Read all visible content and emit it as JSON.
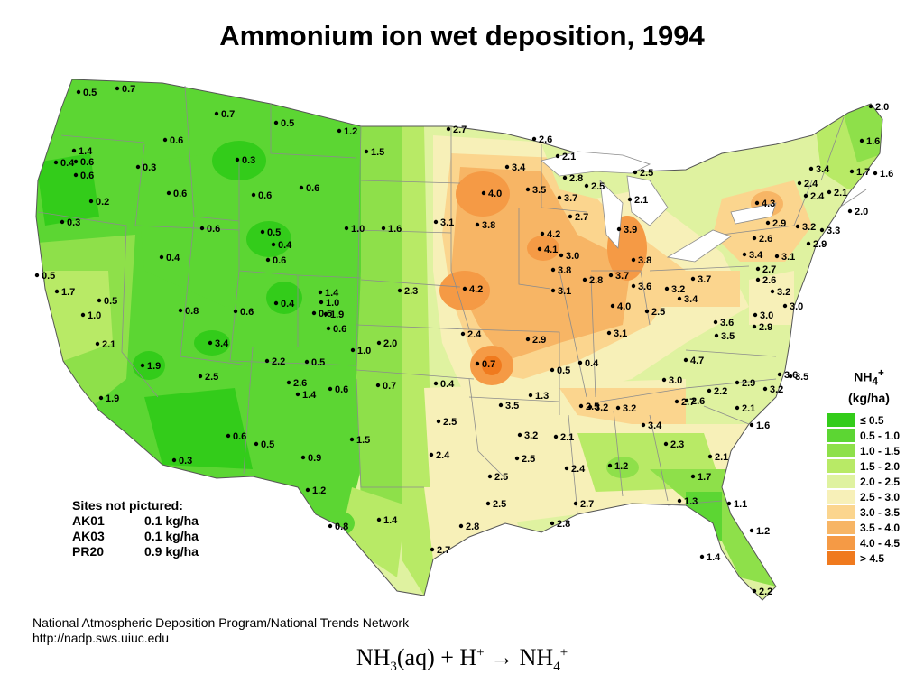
{
  "title": "Ammonium ion wet deposition, 1994",
  "legend": {
    "title_main": "NH",
    "title_sub": "4",
    "title_sup": "+",
    "unit": "(kg/ha)",
    "items": [
      {
        "label": "≤ 0.5",
        "color": "#33cc1a"
      },
      {
        "label": "0.5 - 1.0",
        "color": "#5cd633"
      },
      {
        "label": "1.0 - 1.5",
        "color": "#8ee04a"
      },
      {
        "label": "1.5 - 2.0",
        "color": "#b8ea66"
      },
      {
        "label": "2.0 - 2.5",
        "color": "#dff2a0"
      },
      {
        "label": "2.5 - 3.0",
        "color": "#f7f0b8"
      },
      {
        "label": "3.0 - 3.5",
        "color": "#fbd58e"
      },
      {
        "label": "3.5 - 4.0",
        "color": "#f7b565"
      },
      {
        "label": "4.0 - 4.5",
        "color": "#f59a45"
      },
      {
        "label": "> 4.5",
        "color": "#f07a1e"
      }
    ]
  },
  "sites_not_pictured": {
    "heading": "Sites not pictured:",
    "rows": [
      {
        "id": "AK01",
        "value": "0.1 kg/ha"
      },
      {
        "id": "AK03",
        "value": "0.1 kg/ha"
      },
      {
        "id": "PR20",
        "value": "0.9 kg/ha"
      }
    ]
  },
  "credit": {
    "line1": "National Atmospheric Deposition Program/National Trends Network",
    "line2": "http://nadp.sws.uiuc.edu"
  },
  "equation": {
    "lhs_a": "NH",
    "lhs_a_sub": "3",
    "lhs_b": "(aq) + H",
    "lhs_b_sup": "+",
    "arrow": "→",
    "rhs": "NH",
    "rhs_sub": "4",
    "rhs_sup": "+"
  },
  "sites": [
    "0.5",
    "0.7",
    "0.7",
    "0.5",
    "1.2",
    "2.7",
    "2.6",
    "2.0",
    "1.6",
    "1.4",
    "0.6",
    "0.4",
    "0.6",
    "0.3",
    "0.6",
    "0.3",
    "1.5",
    "3.4",
    "2.1",
    "2.8",
    "2.5",
    "1.7",
    "1.6",
    "3.4",
    "0.2",
    "0.6",
    "0.6",
    "0.6",
    "4.0",
    "3.5",
    "3.7",
    "2.5",
    "2.1",
    "2.4",
    "2.4",
    "2.1",
    "0.3",
    "0.6",
    "0.5",
    "0.4",
    "1.0",
    "1.6",
    "3.1",
    "3.8",
    "4.2",
    "3.9",
    "2.7",
    "4.3",
    "2.9",
    "3.2",
    "3.3",
    "2.0",
    "2.6",
    "2.9",
    "0.6",
    "0.4",
    "4.1",
    "3.0",
    "3.8",
    "3.4",
    "3.1",
    "0.5",
    "1.7",
    "0.5",
    "2.3",
    "4.2",
    "3.8",
    "2.8",
    "3.7",
    "3.6",
    "3.2",
    "3.7",
    "2.7",
    "2.6",
    "1.4",
    "1.0",
    "1.0",
    "0.8",
    "0.6",
    "0.4",
    "0.5",
    "1.9",
    "3.1",
    "4.0",
    "3.4",
    "2.5",
    "3.2",
    "3.0",
    "3.0",
    "3.6",
    "2.9",
    "2.1",
    "0.6",
    "1.0",
    "2.0",
    "2.4",
    "2.9",
    "3.1",
    "3.5",
    "3.4",
    "2.2",
    "0.5",
    "0.7",
    "0.4",
    "4.7",
    "3.6",
    "1.9",
    "2.5",
    "0.4",
    "0.5",
    "3.0",
    "3.5",
    "2.9",
    "1.9",
    "2.6",
    "1.4",
    "0.6",
    "0.7",
    "1.3",
    "2.5",
    "2.2",
    "2.7",
    "2.6",
    "3.2",
    "2.5",
    "3.5",
    "3.2",
    "3.2",
    "2.1",
    "3.4",
    "1.6",
    "0.6",
    "0.5",
    "1.5",
    "3.2",
    "2.1",
    "2.3",
    "0.3",
    "0.9",
    "2.4",
    "2.5",
    "2.4",
    "1.2",
    "2.1",
    "1.7",
    "1.2",
    "2.5",
    "1.3",
    "1.1",
    "2.5",
    "2.7",
    "1.4",
    "2.8",
    "2.8",
    "0.8",
    "1.2",
    "2.7",
    "1.4",
    "2.2"
  ]
}
